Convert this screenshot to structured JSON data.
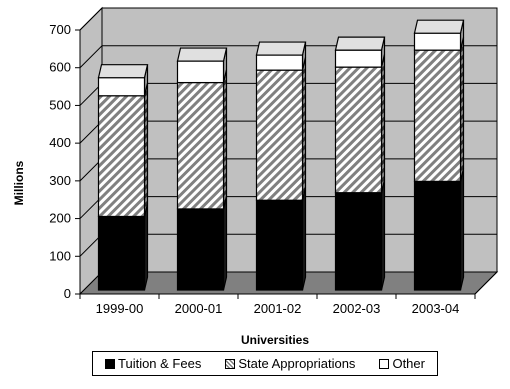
{
  "chart_data": {
    "type": "bar",
    "stacked": true,
    "three_d": true,
    "categories": [
      "1999-00",
      "2000-01",
      "2001-02",
      "2002-03",
      "2003-04"
    ],
    "series": [
      {
        "name": "Tuition & Fees",
        "values": [
          195,
          215,
          238,
          258,
          288
        ],
        "color": "#000000",
        "pattern": "solid"
      },
      {
        "name": "State Appropriations",
        "values": [
          320,
          335,
          345,
          333,
          348
        ],
        "color": "#808080",
        "pattern": "diagonal-hatch"
      },
      {
        "name": "Other",
        "values": [
          48,
          57,
          40,
          45,
          45
        ],
        "color": "#ffffff",
        "pattern": "solid"
      }
    ],
    "xlabel": "Universities",
    "ylabel": "Millions",
    "ylim": [
      0,
      700
    ],
    "yticks": [
      0,
      100,
      200,
      300,
      400,
      500,
      600,
      700
    ],
    "grid": true,
    "legend_position": "bottom",
    "colors": {
      "back_wall": "#c0c0c0",
      "floor": "#808080",
      "gridline": "#000000"
    }
  }
}
